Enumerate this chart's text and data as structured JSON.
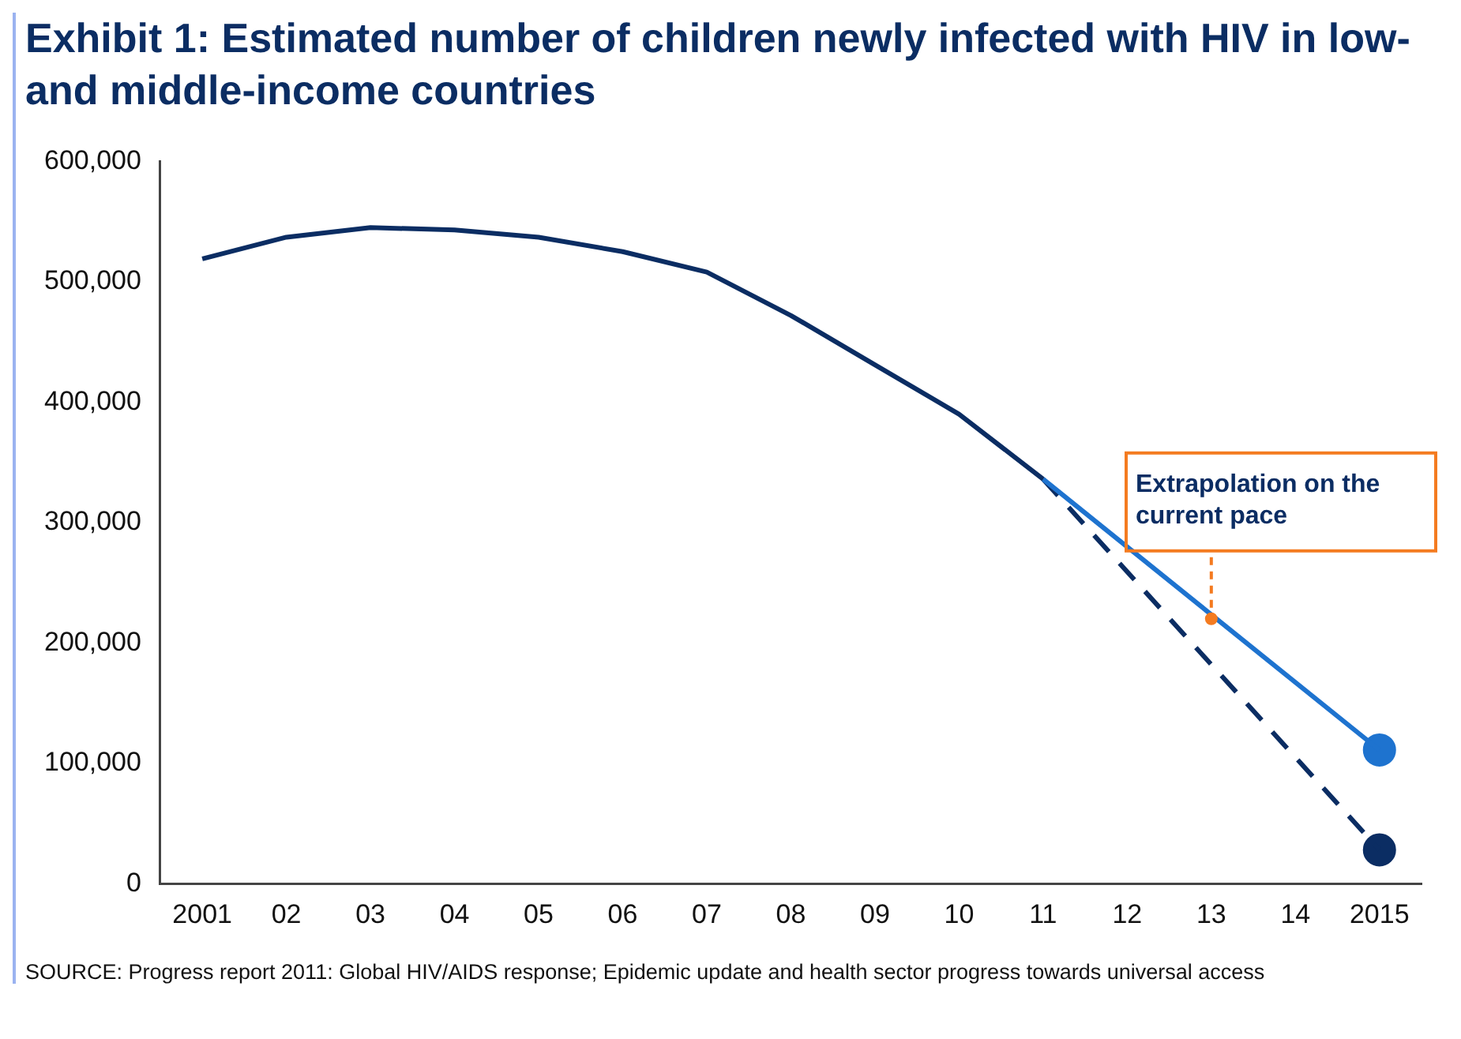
{
  "chart_data": {
    "type": "line",
    "title": "Exhibit 1: Estimated number of children newly infected with HIV in low- and middle-income countries",
    "categories": [
      "2001",
      "02",
      "03",
      "04",
      "05",
      "06",
      "07",
      "08",
      "09",
      "10",
      "11",
      "12",
      "13",
      "14",
      "2015"
    ],
    "series": [
      {
        "name": null,
        "color": "#0b2d63",
        "values": [
          519000,
          537000,
          545000,
          543000,
          537000,
          525000,
          508000,
          472000,
          431000,
          390000,
          336000,
          null,
          null,
          null,
          null
        ]
      },
      {
        "color": "#1e73cf",
        "values": [
          null,
          null,
          null,
          null,
          null,
          null,
          null,
          null,
          null,
          null,
          336000,
          null,
          null,
          null,
          111000
        ]
      },
      {
        "color": "#0b2d63",
        "line_style": "dashed",
        "values": [
          null,
          null,
          null,
          null,
          null,
          null,
          null,
          null,
          null,
          null,
          336000,
          null,
          null,
          null,
          28000
        ]
      },
      {
        "type": "scatter",
        "color": "#1e73cf",
        "marker": "circle",
        "values": [
          null,
          null,
          null,
          null,
          null,
          null,
          null,
          null,
          null,
          null,
          null,
          null,
          null,
          null,
          111000
        ]
      },
      {
        "type": "scatter",
        "color": "#0b2d63",
        "marker": "circle",
        "values": [
          null,
          null,
          null,
          null,
          null,
          null,
          null,
          null,
          null,
          null,
          null,
          null,
          null,
          null,
          28000
        ]
      }
    ],
    "ylim": [
      0,
      600000
    ],
    "yticks": [
      0,
      {
        "value": 100000,
        "label": "100,000"
      },
      {
        "value": 200000,
        "label": "200,000"
      },
      {
        "value": 300000,
        "label": "300,000"
      },
      {
        "value": 400000,
        "label": "400,000"
      },
      {
        "value": 500000,
        "label": "500,000"
      },
      {
        "value": 600000,
        "label": "600,000"
      }
    ],
    "grid": false,
    "legend": false,
    "annotations": [
      {
        "text": "Extrapolation on the current pace",
        "x": "13",
        "y": 220000
      },
      "SOURCE: Progress report 2011: Global HIV/AIDS response; Epidemic update and health sector progress towards universal access"
    ]
  }
}
